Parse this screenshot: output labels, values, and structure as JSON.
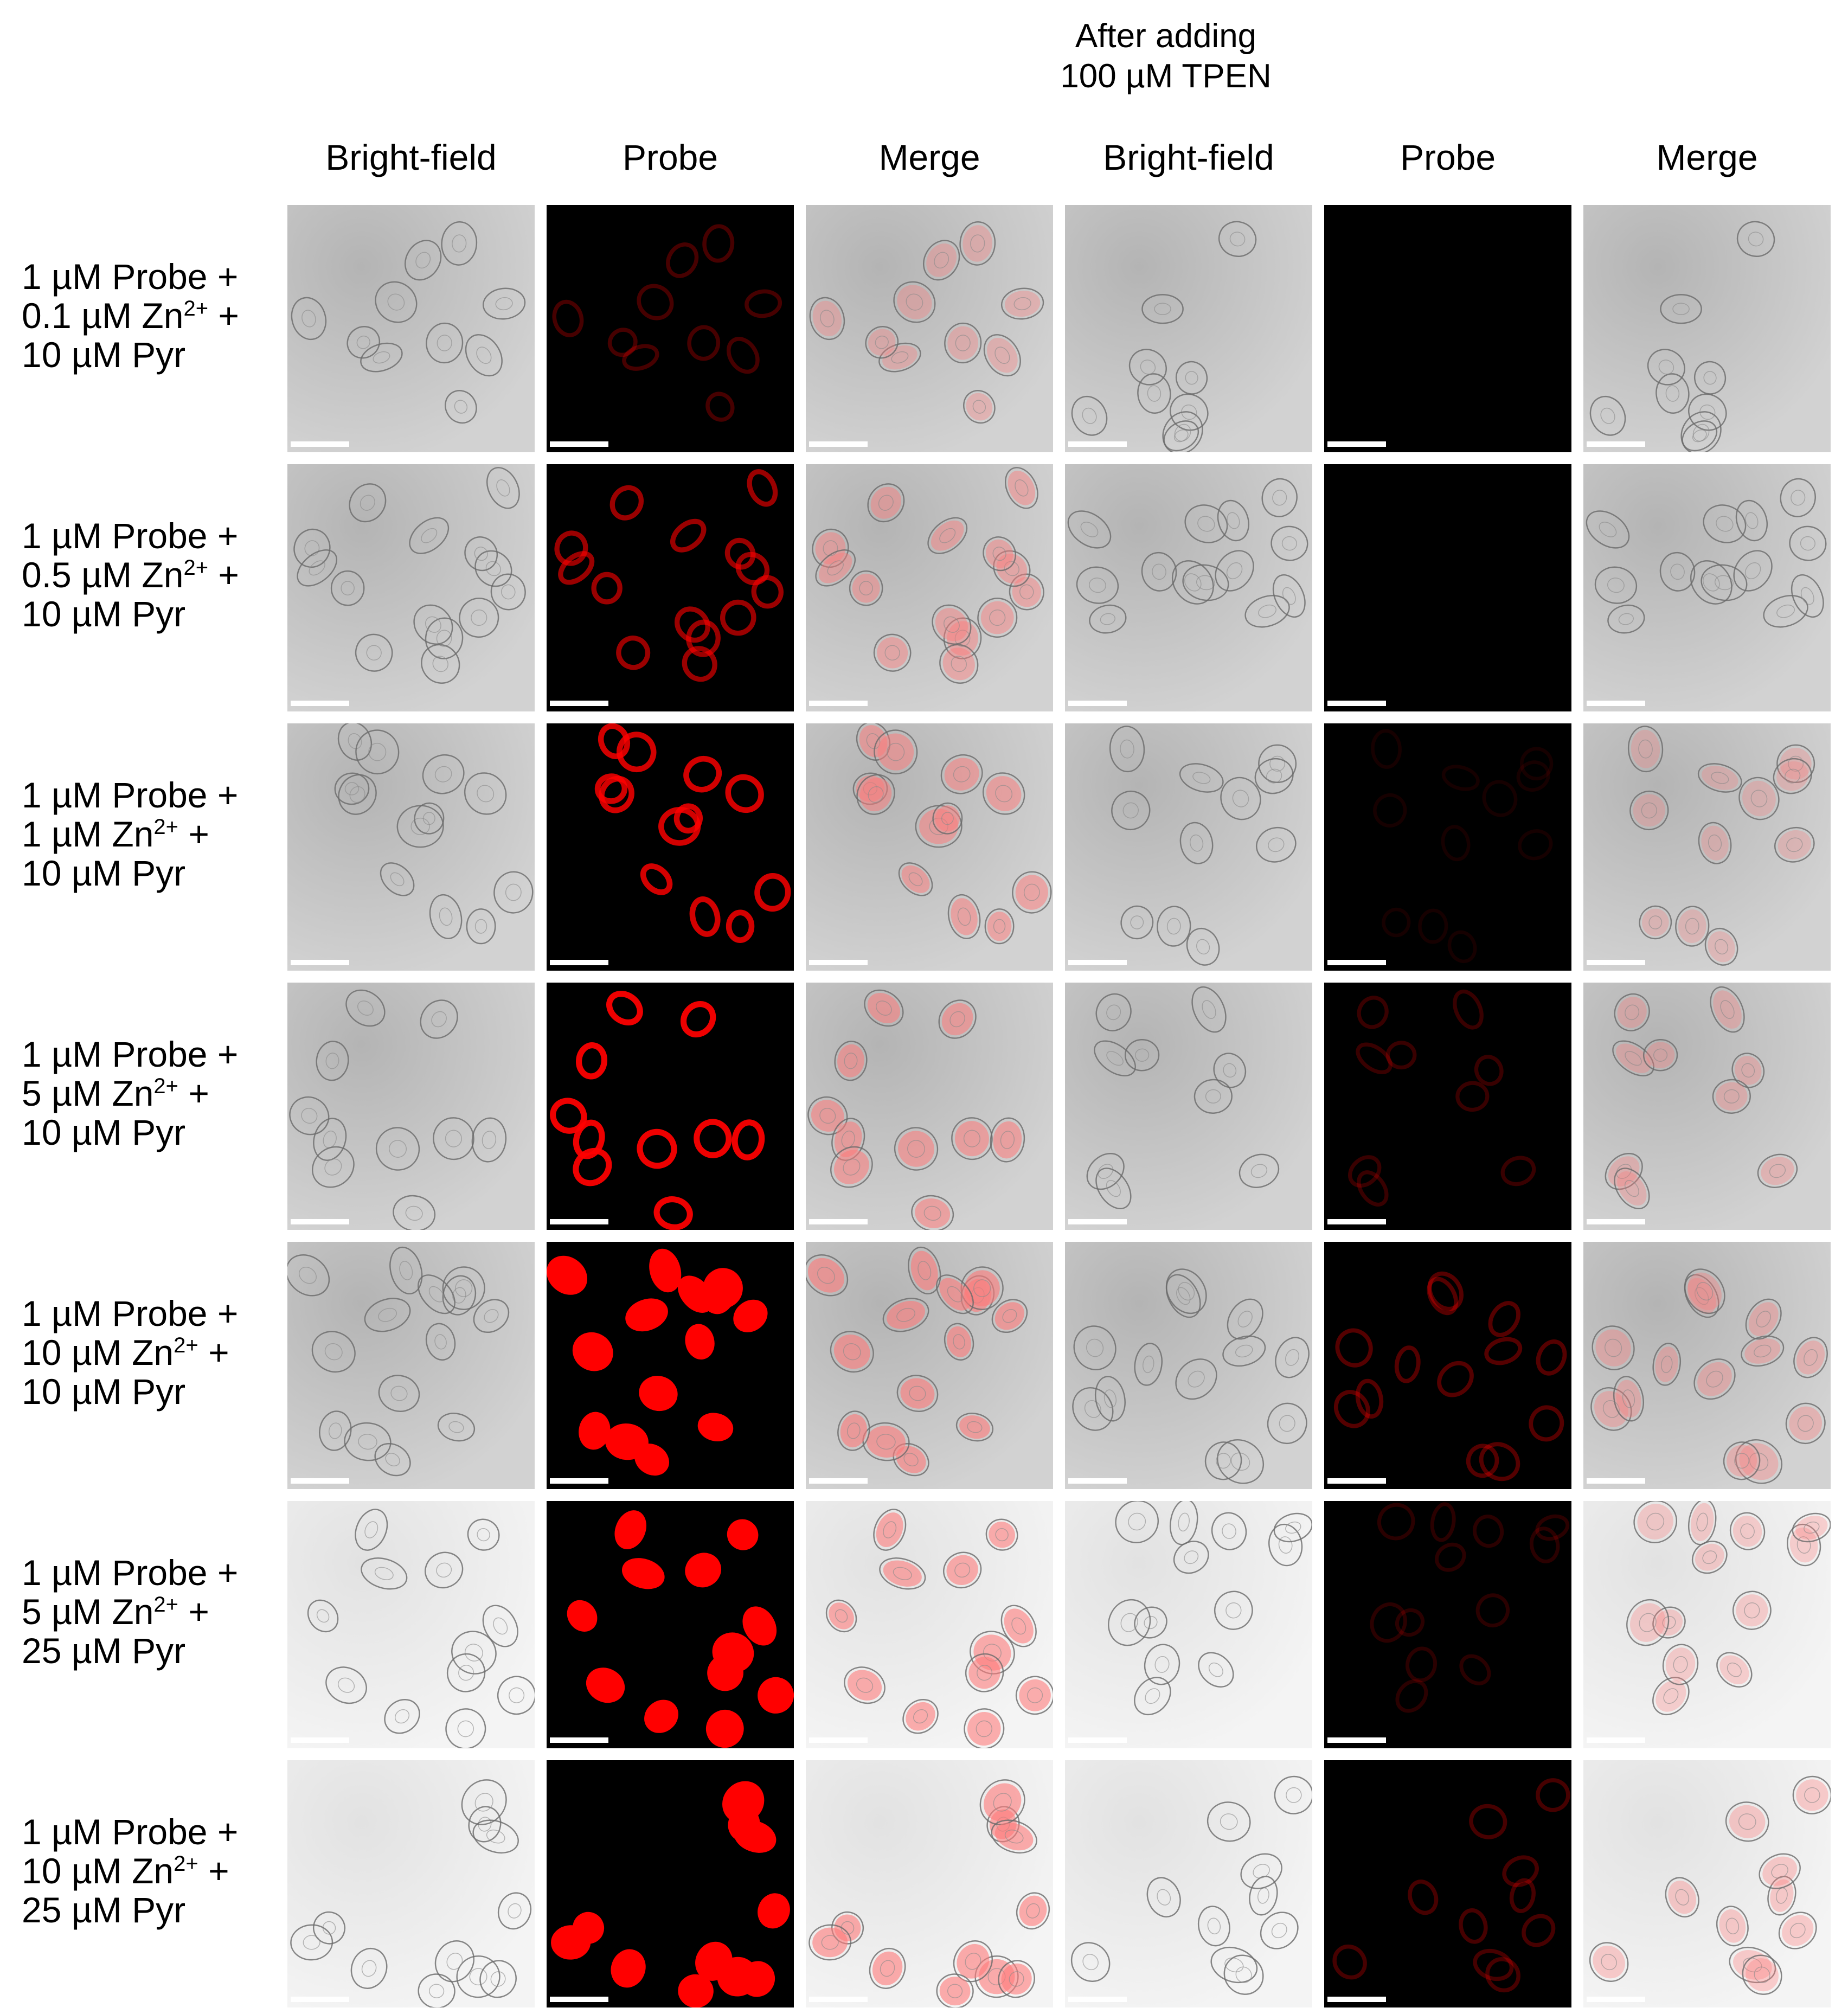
{
  "figure": {
    "group_label": {
      "line1": "After adding",
      "line2": "100 µM TPEN"
    },
    "column_headers": [
      "Bright-field",
      "Probe",
      "Merge",
      "Bright-field",
      "Probe",
      "Merge"
    ],
    "rows": [
      {
        "probe": "1 µM Probe +",
        "zn": "0.1 µM  Zn",
        "zn_charge": "2+",
        "zn_tail": " +",
        "pyr": "10 µM Pyr",
        "probe_intensity": 0.25,
        "tpen_intensity": 0.0,
        "seed": 3
      },
      {
        "probe": "1 µM Probe +",
        "zn": "0.5 µM  Zn",
        "zn_charge": "2+",
        "zn_tail": " +",
        "pyr": "10 µM Pyr",
        "probe_intensity": 0.55,
        "tpen_intensity": 0.0,
        "seed": 11
      },
      {
        "probe": "1 µM Probe +",
        "zn": "1 µM  Zn",
        "zn_charge": "2+",
        "zn_tail": " +",
        "pyr": "10 µM Pyr",
        "probe_intensity": 0.75,
        "tpen_intensity": 0.08,
        "seed": 19
      },
      {
        "probe": "1 µM Probe +",
        "zn": "5 µM  Zn",
        "zn_charge": "2+",
        "zn_tail": " +",
        "pyr": "10 µM Pyr",
        "probe_intensity": 0.85,
        "tpen_intensity": 0.2,
        "seed": 27
      },
      {
        "probe": "1 µM Probe +",
        "zn": "10 µM  Zn",
        "zn_charge": "2+",
        "zn_tail": " +",
        "pyr": "10 µM Pyr",
        "probe_intensity": 1.0,
        "tpen_intensity": 0.3,
        "seed": 35
      },
      {
        "probe": "1 µM Probe +",
        "zn": "5 µM  Zn",
        "zn_charge": "2+",
        "zn_tail": " +",
        "pyr": "25 µM Pyr",
        "probe_intensity": 0.95,
        "tpen_intensity": 0.15,
        "seed": 43
      },
      {
        "probe": "1 µM Probe +",
        "zn": "10 µM  Zn",
        "zn_charge": "2+",
        "zn_tail": " +",
        "pyr": "25 µM Pyr",
        "probe_intensity": 1.0,
        "tpen_intensity": 0.25,
        "seed": 51
      }
    ],
    "colors": {
      "fluorescence": "#ff0000",
      "background_dark": "#000000",
      "brightfield": "#c8c8c8"
    }
  }
}
